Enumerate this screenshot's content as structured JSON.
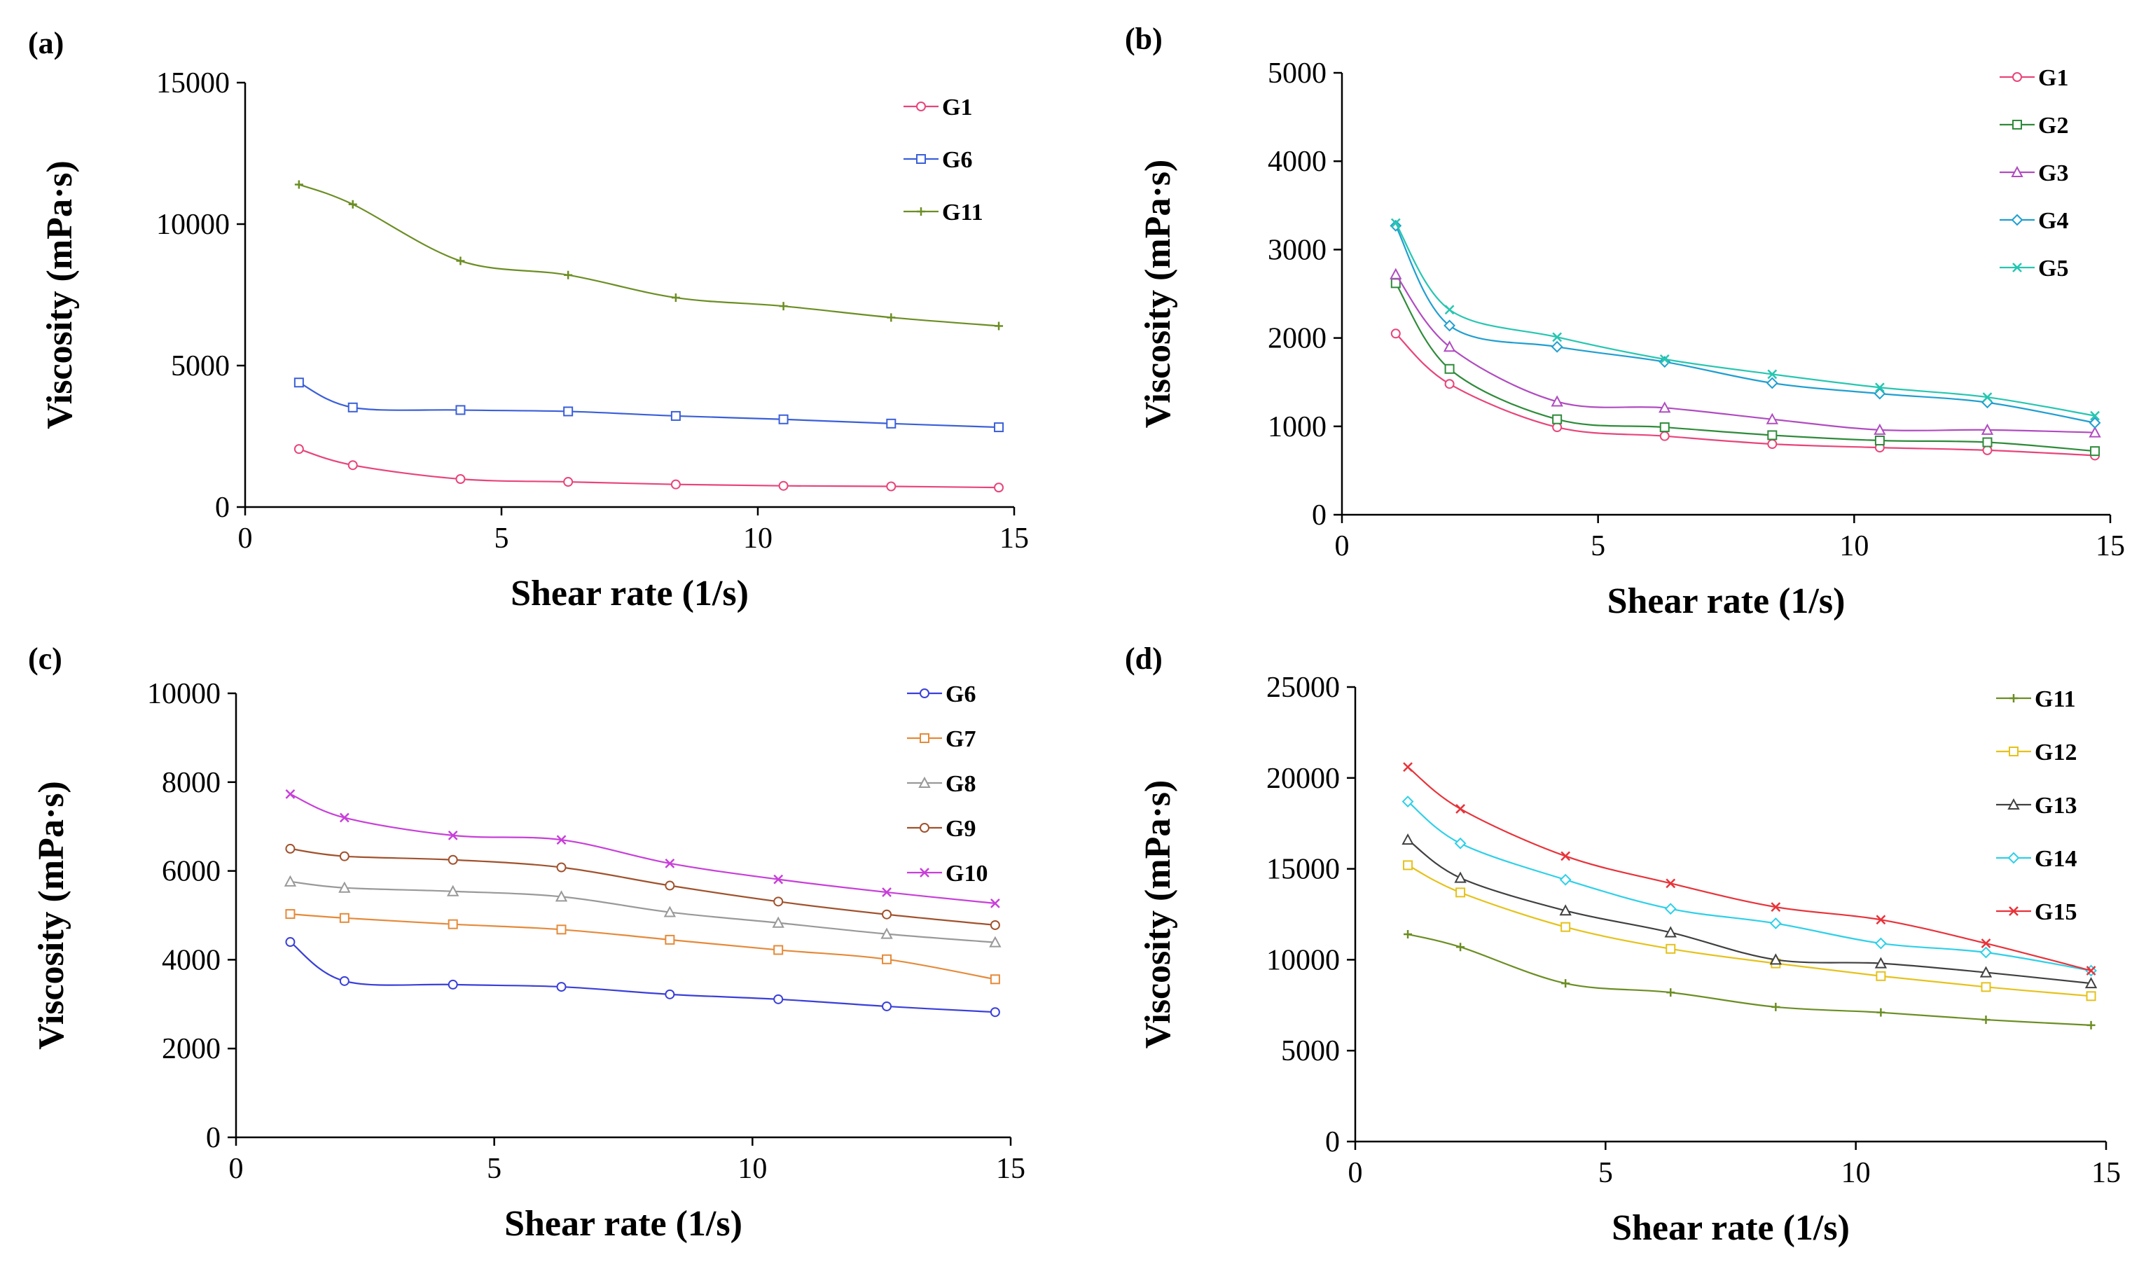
{
  "chart_data": [
    {
      "panel": "(a)",
      "type": "line",
      "xlabel": "Shear rate (1/s)",
      "ylabel": "Viscosity (mPa·s)",
      "xlim": [
        0,
        15
      ],
      "ylim": [
        0,
        15000
      ],
      "xticks": [
        0,
        5,
        10,
        15
      ],
      "yticks": [
        0,
        5000,
        10000,
        15000
      ],
      "x": [
        1.05,
        2.1,
        4.2,
        6.3,
        8.4,
        10.5,
        12.6,
        14.7
      ],
      "legend_position": "top-right",
      "series": [
        {
          "name": "G1",
          "color": "#e8457a",
          "marker": "circle",
          "values": [
            2050,
            1480,
            990,
            890,
            800,
            750,
            730,
            690
          ]
        },
        {
          "name": "G6",
          "color": "#3a5fd9",
          "marker": "square",
          "values": [
            4400,
            3520,
            3430,
            3380,
            3220,
            3100,
            2950,
            2820
          ]
        },
        {
          "name": "G11",
          "color": "#6b8e23",
          "marker": "plus",
          "values": [
            11400,
            10700,
            8700,
            8200,
            7400,
            7100,
            6700,
            6400
          ]
        }
      ]
    },
    {
      "panel": "(b)",
      "type": "line",
      "xlabel": "Shear rate (1/s)",
      "ylabel": "Viscosity (mPa·s)",
      "xlim": [
        0,
        15
      ],
      "ylim": [
        0,
        5000
      ],
      "xticks": [
        0,
        5,
        10,
        15
      ],
      "yticks": [
        0,
        1000,
        2000,
        3000,
        4000,
        5000
      ],
      "x": [
        1.05,
        2.1,
        4.2,
        6.3,
        8.4,
        10.5,
        12.6,
        14.7
      ],
      "legend_position": "top-right",
      "series": [
        {
          "name": "G1",
          "color": "#e8457a",
          "marker": "circle",
          "values": [
            2050,
            1480,
            990,
            890,
            800,
            760,
            730,
            670
          ]
        },
        {
          "name": "G2",
          "color": "#2e8b3a",
          "marker": "square",
          "values": [
            2620,
            1650,
            1080,
            990,
            900,
            840,
            820,
            720
          ]
        },
        {
          "name": "G3",
          "color": "#b04cc0",
          "marker": "triangle",
          "values": [
            2720,
            1900,
            1280,
            1210,
            1080,
            960,
            960,
            930
          ]
        },
        {
          "name": "G4",
          "color": "#1f9fd0",
          "marker": "diamond",
          "values": [
            3270,
            2140,
            1900,
            1730,
            1490,
            1370,
            1270,
            1040
          ]
        },
        {
          "name": "G5",
          "color": "#26c6b0",
          "marker": "x",
          "values": [
            3300,
            2320,
            2010,
            1760,
            1590,
            1440,
            1330,
            1120
          ]
        }
      ]
    },
    {
      "panel": "(c)",
      "type": "line",
      "xlabel": "Shear rate (1/s)",
      "ylabel": "Viscosity (mPa·s)",
      "xlim": [
        0,
        15
      ],
      "ylim": [
        0,
        10000
      ],
      "xticks": [
        0,
        5,
        10,
        15
      ],
      "yticks": [
        0,
        2000,
        4000,
        6000,
        8000,
        10000
      ],
      "x": [
        1.05,
        2.1,
        4.2,
        6.3,
        8.4,
        10.5,
        12.6,
        14.7
      ],
      "legend_position": "top-right",
      "series": [
        {
          "name": "G6",
          "color": "#3a3fd9",
          "marker": "circle",
          "values": [
            4400,
            3520,
            3440,
            3390,
            3220,
            3110,
            2950,
            2820
          ]
        },
        {
          "name": "G7",
          "color": "#e58a3a",
          "marker": "square",
          "values": [
            5030,
            4940,
            4800,
            4680,
            4450,
            4220,
            4010,
            3560
          ]
        },
        {
          "name": "G8",
          "color": "#999999",
          "marker": "triangle",
          "values": [
            5760,
            5620,
            5540,
            5420,
            5070,
            4830,
            4580,
            4390
          ]
        },
        {
          "name": "G9",
          "color": "#a0522d",
          "marker": "circle",
          "values": [
            6500,
            6330,
            6250,
            6080,
            5670,
            5310,
            5020,
            4780
          ]
        },
        {
          "name": "G10",
          "color": "#c83fd9",
          "marker": "x",
          "values": [
            7730,
            7200,
            6800,
            6700,
            6170,
            5810,
            5520,
            5270
          ]
        }
      ]
    },
    {
      "panel": "(d)",
      "type": "line",
      "xlabel": "Shear rate (1/s)",
      "ylabel": "Viscosity (mPa·s)",
      "xlim": [
        0,
        15
      ],
      "ylim": [
        0,
        25000
      ],
      "xticks": [
        0,
        5,
        10,
        15
      ],
      "yticks": [
        0,
        5000,
        10000,
        15000,
        20000,
        25000
      ],
      "x": [
        1.05,
        2.1,
        4.2,
        6.3,
        8.4,
        10.5,
        12.6,
        14.7
      ],
      "legend_position": "top-right",
      "series": [
        {
          "name": "G11",
          "color": "#6b8e23",
          "marker": "plus",
          "values": [
            11400,
            10700,
            8700,
            8200,
            7400,
            7100,
            6700,
            6400
          ]
        },
        {
          "name": "G12",
          "color": "#e5c21a",
          "marker": "square",
          "values": [
            15200,
            13700,
            11800,
            10600,
            9800,
            9100,
            8500,
            8000
          ]
        },
        {
          "name": "G13",
          "color": "#404040",
          "marker": "triangle",
          "values": [
            16600,
            14500,
            12700,
            11500,
            10000,
            9800,
            9300,
            8700
          ]
        },
        {
          "name": "G14",
          "color": "#2ed0e8",
          "marker": "diamond",
          "values": [
            18700,
            16400,
            14400,
            12800,
            12000,
            10900,
            10400,
            9400
          ]
        },
        {
          "name": "G15",
          "color": "#e8333a",
          "marker": "x",
          "values": [
            20600,
            18300,
            15700,
            14200,
            12900,
            12200,
            10900,
            9400
          ]
        }
      ]
    }
  ]
}
